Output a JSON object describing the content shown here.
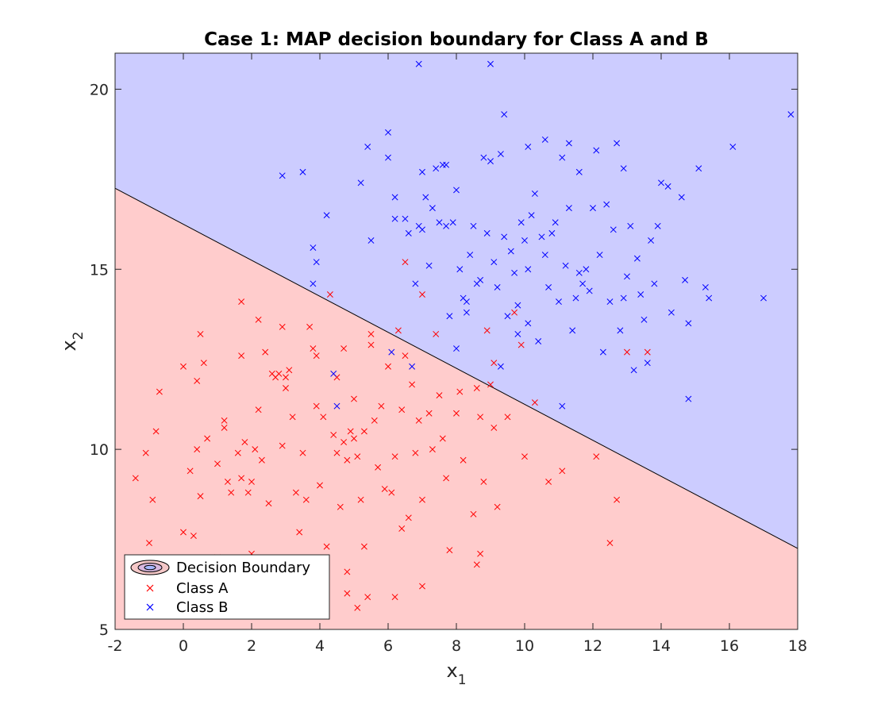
{
  "chart_data": {
    "type": "scatter",
    "title": "Case 1: MAP decision boundary for Class A and B",
    "xlabel": "x",
    "xlabel_sub": "1",
    "ylabel": "x",
    "ylabel_sub": "2",
    "xlim": [
      -2,
      18
    ],
    "ylim": [
      5,
      21
    ],
    "xticks": [
      -2,
      0,
      2,
      4,
      6,
      8,
      10,
      12,
      14,
      16,
      18
    ],
    "yticks": [
      5,
      10,
      15,
      20
    ],
    "grid": false,
    "legend_position": "bottom-left",
    "legend": [
      "Decision Boundary",
      "Class A",
      "Class B"
    ],
    "boundary": {
      "x": [
        -2,
        18
      ],
      "y": [
        17.25,
        7.25
      ]
    },
    "regions": {
      "class_a_color": "#ffcccc",
      "class_b_color": "#ccccff"
    },
    "series": [
      {
        "name": "Class A",
        "color": "#ff0000",
        "marker": "x",
        "points": [
          [
            -1.4,
            9.2
          ],
          [
            -1.1,
            9.9
          ],
          [
            -0.9,
            8.6
          ],
          [
            -0.8,
            10.5
          ],
          [
            -0.7,
            11.6
          ],
          [
            -1.0,
            7.4
          ],
          [
            0.0,
            12.3
          ],
          [
            0.0,
            7.7
          ],
          [
            0.2,
            9.4
          ],
          [
            0.3,
            7.6
          ],
          [
            0.4,
            11.9
          ],
          [
            0.4,
            10.0
          ],
          [
            0.5,
            13.2
          ],
          [
            0.5,
            8.7
          ],
          [
            0.6,
            12.4
          ],
          [
            0.7,
            10.3
          ],
          [
            1.0,
            9.6
          ],
          [
            1.0,
            7.0
          ],
          [
            1.2,
            10.8
          ],
          [
            1.2,
            10.6
          ],
          [
            1.3,
            9.1
          ],
          [
            1.4,
            8.8
          ],
          [
            1.6,
            9.9
          ],
          [
            1.7,
            14.1
          ],
          [
            1.7,
            12.6
          ],
          [
            1.7,
            9.2
          ],
          [
            1.8,
            10.2
          ],
          [
            1.9,
            8.8
          ],
          [
            2.0,
            7.1
          ],
          [
            2.0,
            9.1
          ],
          [
            2.1,
            10.0
          ],
          [
            2.2,
            13.6
          ],
          [
            2.2,
            11.1
          ],
          [
            2.3,
            9.7
          ],
          [
            2.4,
            12.7
          ],
          [
            2.5,
            8.5
          ],
          [
            2.6,
            12.1
          ],
          [
            2.7,
            12.0
          ],
          [
            2.8,
            12.1
          ],
          [
            2.9,
            10.1
          ],
          [
            2.9,
            13.4
          ],
          [
            3.0,
            11.7
          ],
          [
            3.0,
            12.0
          ],
          [
            3.1,
            12.2
          ],
          [
            3.2,
            10.9
          ],
          [
            3.3,
            8.8
          ],
          [
            3.4,
            7.7
          ],
          [
            3.5,
            9.9
          ],
          [
            3.6,
            8.6
          ],
          [
            3.7,
            13.4
          ],
          [
            3.8,
            12.8
          ],
          [
            3.9,
            12.6
          ],
          [
            3.9,
            11.2
          ],
          [
            4.0,
            9.0
          ],
          [
            4.1,
            10.9
          ],
          [
            4.2,
            7.3
          ],
          [
            4.3,
            14.3
          ],
          [
            4.4,
            10.4
          ],
          [
            4.5,
            12.0
          ],
          [
            4.5,
            9.9
          ],
          [
            4.6,
            8.4
          ],
          [
            4.7,
            12.8
          ],
          [
            4.7,
            10.2
          ],
          [
            4.8,
            9.7
          ],
          [
            4.9,
            10.5
          ],
          [
            5.0,
            11.4
          ],
          [
            5.0,
            10.3
          ],
          [
            5.1,
            9.8
          ],
          [
            5.2,
            8.6
          ],
          [
            5.3,
            10.5
          ],
          [
            5.3,
            7.3
          ],
          [
            5.4,
            5.9
          ],
          [
            5.5,
            13.2
          ],
          [
            5.5,
            12.9
          ],
          [
            5.6,
            10.8
          ],
          [
            5.7,
            9.5
          ],
          [
            5.8,
            11.2
          ],
          [
            5.9,
            8.9
          ],
          [
            6.0,
            12.3
          ],
          [
            6.1,
            8.8
          ],
          [
            6.2,
            9.8
          ],
          [
            6.3,
            13.3
          ],
          [
            6.4,
            11.1
          ],
          [
            6.4,
            7.8
          ],
          [
            6.5,
            12.6
          ],
          [
            6.6,
            8.1
          ],
          [
            6.7,
            11.8
          ],
          [
            6.8,
            9.9
          ],
          [
            6.9,
            10.8
          ],
          [
            7.0,
            14.3
          ],
          [
            7.0,
            8.6
          ],
          [
            7.0,
            6.2
          ],
          [
            7.2,
            11.0
          ],
          [
            7.3,
            10.0
          ],
          [
            7.4,
            13.2
          ],
          [
            7.5,
            11.5
          ],
          [
            7.6,
            10.3
          ],
          [
            7.7,
            9.2
          ],
          [
            7.8,
            7.2
          ],
          [
            8.0,
            11.0
          ],
          [
            8.1,
            11.6
          ],
          [
            8.2,
            9.7
          ],
          [
            8.5,
            8.2
          ],
          [
            8.6,
            11.7
          ],
          [
            8.7,
            10.9
          ],
          [
            8.8,
            9.1
          ],
          [
            8.9,
            13.3
          ],
          [
            9.0,
            11.8
          ],
          [
            9.1,
            12.4
          ],
          [
            9.1,
            10.6
          ],
          [
            9.2,
            8.4
          ],
          [
            9.5,
            10.9
          ],
          [
            9.7,
            13.8
          ],
          [
            9.9,
            12.9
          ],
          [
            10.0,
            9.8
          ],
          [
            10.3,
            11.3
          ],
          [
            10.7,
            9.1
          ],
          [
            11.1,
            9.4
          ],
          [
            12.1,
            9.8
          ],
          [
            12.5,
            7.4
          ],
          [
            12.7,
            8.6
          ],
          [
            13.0,
            12.7
          ],
          [
            13.6,
            12.7
          ],
          [
            6.5,
            15.2
          ],
          [
            4.8,
            6.0
          ],
          [
            4.8,
            6.6
          ],
          [
            5.1,
            5.6
          ],
          [
            6.2,
            5.9
          ],
          [
            8.6,
            6.8
          ],
          [
            8.7,
            7.1
          ]
        ]
      },
      {
        "name": "Class B",
        "color": "#0000ff",
        "marker": "x",
        "points": [
          [
            2.9,
            17.6
          ],
          [
            3.5,
            17.7
          ],
          [
            3.8,
            15.6
          ],
          [
            3.9,
            15.2
          ],
          [
            3.8,
            14.6
          ],
          [
            4.2,
            16.5
          ],
          [
            4.4,
            12.1
          ],
          [
            4.5,
            11.2
          ],
          [
            5.2,
            17.4
          ],
          [
            5.4,
            18.4
          ],
          [
            5.5,
            15.8
          ],
          [
            6.0,
            18.8
          ],
          [
            6.0,
            18.1
          ],
          [
            6.1,
            12.7
          ],
          [
            6.2,
            17.0
          ],
          [
            6.2,
            16.4
          ],
          [
            6.5,
            16.4
          ],
          [
            6.6,
            16.0
          ],
          [
            6.7,
            12.3
          ],
          [
            6.8,
            14.6
          ],
          [
            6.9,
            20.7
          ],
          [
            6.9,
            16.2
          ],
          [
            7.0,
            17.7
          ],
          [
            7.0,
            16.1
          ],
          [
            7.1,
            17.0
          ],
          [
            7.2,
            15.1
          ],
          [
            7.3,
            16.7
          ],
          [
            7.4,
            17.8
          ],
          [
            7.5,
            16.3
          ],
          [
            7.6,
            17.9
          ],
          [
            7.7,
            17.9
          ],
          [
            7.7,
            16.2
          ],
          [
            7.8,
            13.7
          ],
          [
            7.9,
            16.3
          ],
          [
            8.0,
            12.8
          ],
          [
            8.0,
            17.2
          ],
          [
            8.1,
            15.0
          ],
          [
            8.2,
            14.2
          ],
          [
            8.3,
            13.8
          ],
          [
            8.4,
            15.4
          ],
          [
            8.5,
            16.2
          ],
          [
            8.6,
            14.6
          ],
          [
            8.7,
            14.7
          ],
          [
            8.8,
            18.1
          ],
          [
            8.9,
            16.0
          ],
          [
            9.0,
            20.7
          ],
          [
            9.0,
            18.0
          ],
          [
            9.1,
            15.2
          ],
          [
            9.2,
            14.5
          ],
          [
            9.3,
            12.3
          ],
          [
            9.3,
            18.2
          ],
          [
            9.4,
            19.3
          ],
          [
            9.4,
            15.9
          ],
          [
            9.5,
            13.7
          ],
          [
            9.6,
            15.5
          ],
          [
            9.7,
            14.9
          ],
          [
            9.8,
            13.2
          ],
          [
            9.9,
            16.3
          ],
          [
            10.0,
            15.8
          ],
          [
            10.1,
            18.4
          ],
          [
            10.1,
            15.0
          ],
          [
            10.2,
            16.5
          ],
          [
            10.3,
            17.1
          ],
          [
            10.4,
            13.0
          ],
          [
            10.5,
            15.9
          ],
          [
            10.6,
            15.4
          ],
          [
            10.6,
            18.6
          ],
          [
            10.7,
            14.5
          ],
          [
            10.8,
            16.0
          ],
          [
            10.9,
            16.3
          ],
          [
            11.0,
            14.1
          ],
          [
            11.1,
            18.1
          ],
          [
            11.1,
            11.2
          ],
          [
            11.2,
            15.1
          ],
          [
            11.3,
            16.7
          ],
          [
            11.3,
            18.5
          ],
          [
            11.4,
            13.3
          ],
          [
            11.5,
            14.2
          ],
          [
            11.6,
            17.7
          ],
          [
            11.7,
            14.6
          ],
          [
            11.8,
            15.0
          ],
          [
            11.9,
            14.4
          ],
          [
            12.0,
            16.7
          ],
          [
            12.1,
            18.3
          ],
          [
            12.2,
            15.4
          ],
          [
            12.3,
            12.7
          ],
          [
            12.4,
            16.8
          ],
          [
            12.5,
            14.1
          ],
          [
            12.6,
            16.1
          ],
          [
            12.7,
            18.5
          ],
          [
            12.8,
            13.3
          ],
          [
            12.9,
            17.8
          ],
          [
            13.0,
            14.8
          ],
          [
            13.1,
            16.2
          ],
          [
            13.2,
            12.2
          ],
          [
            13.3,
            15.3
          ],
          [
            13.4,
            14.3
          ],
          [
            13.5,
            13.6
          ],
          [
            13.6,
            12.4
          ],
          [
            13.7,
            15.8
          ],
          [
            13.8,
            14.6
          ],
          [
            13.9,
            16.2
          ],
          [
            14.0,
            17.4
          ],
          [
            14.2,
            17.3
          ],
          [
            14.3,
            13.8
          ],
          [
            14.6,
            17.0
          ],
          [
            14.7,
            14.7
          ],
          [
            14.8,
            13.5
          ],
          [
            14.8,
            11.4
          ],
          [
            15.1,
            17.8
          ],
          [
            15.3,
            14.5
          ],
          [
            15.4,
            14.2
          ],
          [
            16.1,
            18.4
          ],
          [
            17.0,
            14.2
          ],
          [
            17.8,
            19.3
          ],
          [
            9.8,
            14.0
          ],
          [
            10.1,
            13.5
          ],
          [
            8.3,
            14.1
          ],
          [
            11.6,
            14.9
          ],
          [
            12.9,
            14.2
          ]
        ]
      }
    ]
  }
}
